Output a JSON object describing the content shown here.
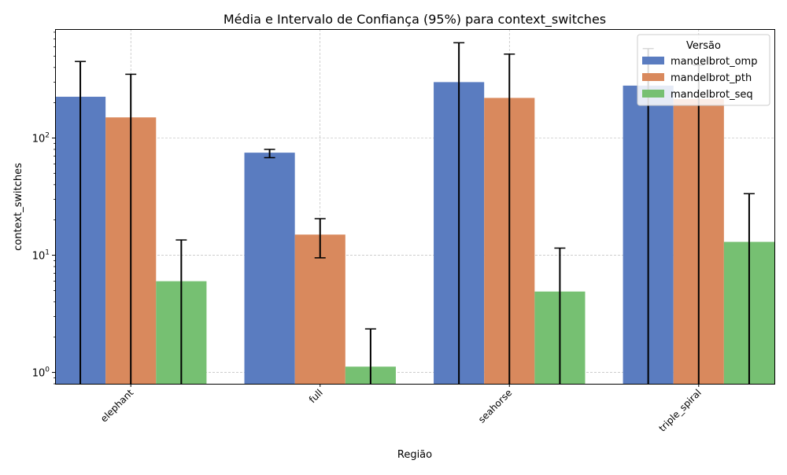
{
  "chart_data": {
    "type": "bar",
    "title": "Média e Intervalo de Confiança (95%) para context_switches",
    "xlabel": "Região",
    "ylabel": "context_switches",
    "yscale": "log",
    "ylim": [
      0.8,
      850
    ],
    "grid": true,
    "legend_position": "upper right",
    "legend_title": "Versão",
    "categories": [
      "elephant",
      "full",
      "seahorse",
      "triple_spiral"
    ],
    "series": [
      {
        "name": "mandelbrot_omp",
        "color": "#5A7CC0",
        "values": [
          225,
          75,
          300,
          280
        ],
        "ci_low": [
          0.1,
          68,
          0.1,
          0.1
        ],
        "ci_high": [
          450,
          80,
          650,
          580
        ]
      },
      {
        "name": "mandelbrot_pth",
        "color": "#D9895D",
        "values": [
          150,
          15,
          220,
          215
        ],
        "ci_low": [
          0.1,
          9.5,
          0.1,
          0.1
        ],
        "ci_high": [
          350,
          20.5,
          520,
          420
        ]
      },
      {
        "name": "mandelbrot_seq",
        "color": "#76C072",
        "values": [
          6,
          1.12,
          4.9,
          13
        ],
        "ci_low": [
          0.1,
          0.1,
          0.1,
          0.1
        ],
        "ci_high": [
          13.5,
          2.35,
          11.5,
          33.5
        ]
      }
    ],
    "y_ticks": [
      {
        "value": 1,
        "base": "10",
        "exp": "0"
      },
      {
        "value": 10,
        "base": "10",
        "exp": "1"
      },
      {
        "value": 100,
        "base": "10",
        "exp": "2"
      }
    ]
  }
}
